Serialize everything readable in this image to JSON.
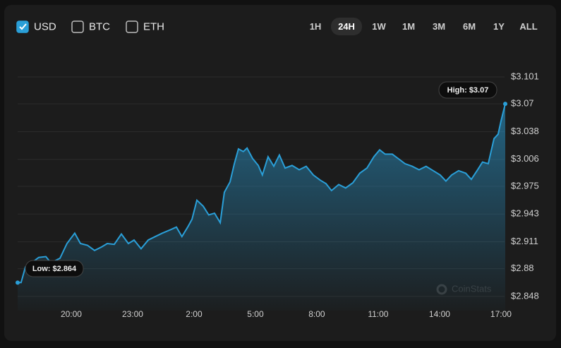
{
  "controls": {
    "currencies": [
      {
        "label": "USD",
        "checked": true
      },
      {
        "label": "BTC",
        "checked": false
      },
      {
        "label": "ETH",
        "checked": false
      }
    ],
    "timeframes": [
      {
        "label": "1H",
        "active": false
      },
      {
        "label": "24H",
        "active": true
      },
      {
        "label": "1W",
        "active": false
      },
      {
        "label": "1M",
        "active": false
      },
      {
        "label": "3M",
        "active": false
      },
      {
        "label": "6M",
        "active": false
      },
      {
        "label": "1Y",
        "active": false
      },
      {
        "label": "ALL",
        "active": false
      }
    ]
  },
  "chart_data": {
    "type": "area",
    "x": [
      17.38,
      17.55,
      17.76,
      18.07,
      18.41,
      18.76,
      19.0,
      19.45,
      19.79,
      20.17,
      20.45,
      20.79,
      21.14,
      21.48,
      21.76,
      22.1,
      22.45,
      22.79,
      23.07,
      23.41,
      23.76,
      24.1,
      24.45,
      24.86,
      25.14,
      25.41,
      25.69,
      25.9,
      26.14,
      26.45,
      26.72,
      27.0,
      27.28,
      27.48,
      27.76,
      27.97,
      28.17,
      28.41,
      28.59,
      28.86,
      29.14,
      29.34,
      29.62,
      29.9,
      30.17,
      30.45,
      30.79,
      31.14,
      31.48,
      31.83,
      32.17,
      32.45,
      32.72,
      33.07,
      33.41,
      33.76,
      34.1,
      34.45,
      34.79,
      35.07,
      35.34,
      35.69,
      35.97,
      36.31,
      36.66,
      37.0,
      37.34,
      37.69,
      38.03,
      38.31,
      38.59,
      38.93,
      39.28,
      39.55,
      39.83,
      40.1,
      40.38,
      40.66,
      40.86,
      41.0,
      41.21
    ],
    "series": [
      {
        "color": "#2a9fd8",
        "values": [
          2.864,
          2.864,
          2.882,
          2.887,
          2.893,
          2.894,
          2.887,
          2.892,
          2.909,
          2.921,
          2.909,
          2.907,
          2.901,
          2.905,
          2.909,
          2.908,
          2.92,
          2.909,
          2.913,
          2.903,
          2.913,
          2.917,
          2.921,
          2.925,
          2.928,
          2.917,
          2.928,
          2.937,
          2.959,
          2.952,
          2.942,
          2.944,
          2.933,
          2.968,
          2.98,
          3.001,
          3.018,
          3.015,
          3.019,
          3.007,
          2.999,
          2.988,
          3.009,
          2.998,
          3.011,
          2.996,
          2.999,
          2.994,
          2.998,
          2.988,
          2.982,
          2.978,
          2.97,
          2.977,
          2.973,
          2.979,
          2.99,
          2.996,
          3.009,
          3.017,
          3.012,
          3.012,
          3.007,
          3.001,
          2.998,
          2.994,
          2.998,
          2.993,
          2.988,
          2.981,
          2.988,
          2.993,
          2.99,
          2.983,
          2.993,
          3.003,
          3.001,
          3.03,
          3.035,
          3.05,
          3.07
        ]
      }
    ],
    "xlim": [
      17.38,
      41.21
    ],
    "xticks": [
      {
        "value": 20,
        "label": "20:00"
      },
      {
        "value": 23,
        "label": "23:00"
      },
      {
        "value": 26,
        "label": "2:00"
      },
      {
        "value": 29,
        "label": "5:00"
      },
      {
        "value": 32,
        "label": "8:00"
      },
      {
        "value": 35,
        "label": "11:00"
      },
      {
        "value": 38,
        "label": "14:00"
      },
      {
        "value": 41,
        "label": "17:00"
      }
    ],
    "ylim": [
      2.848,
      3.101
    ],
    "yticks": [
      {
        "value": 2.848,
        "label": "$2.848"
      },
      {
        "value": 2.88,
        "label": "$2.88"
      },
      {
        "value": 2.911,
        "label": "$2.911"
      },
      {
        "value": 2.943,
        "label": "$2.943"
      },
      {
        "value": 2.975,
        "label": "$2.975"
      },
      {
        "value": 3.006,
        "label": "$3.006"
      },
      {
        "value": 3.038,
        "label": "$3.038"
      },
      {
        "value": 3.07,
        "label": "$3.07"
      },
      {
        "value": 3.101,
        "label": "$3.101"
      }
    ],
    "grid": true,
    "annotations": [
      "Low: $2.864",
      "High: $3.07"
    ],
    "watermark": "CoinStats"
  }
}
